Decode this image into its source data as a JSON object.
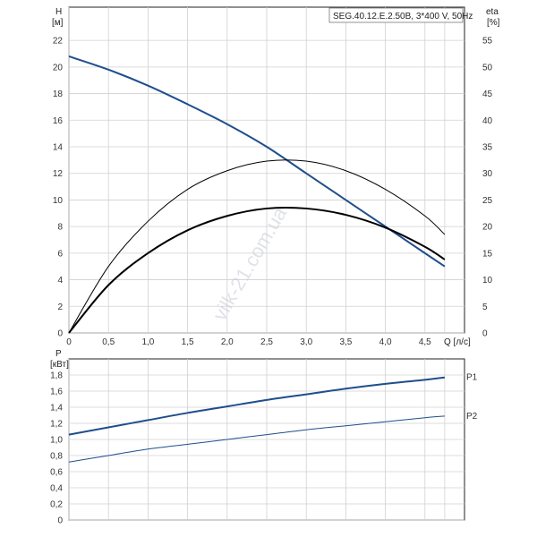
{
  "watermark": "vilk-21.com.ua",
  "chart_data": [
    {
      "type": "line",
      "title": "SEG.40.12.E.2.50B, 3*400 V, 50Hz",
      "xlabel": "Q [л/с]",
      "ylabel": "H",
      "ylabel_unit": "[м]",
      "y2label": "eta",
      "y2label_unit": "[%]",
      "xlim": [
        0,
        5
      ],
      "ylim": [
        0,
        24.5
      ],
      "y2lim": [
        0,
        61.25
      ],
      "grid": true,
      "xticks": [
        "0",
        "0,5",
        "1,0",
        "1,5",
        "2,0",
        "2,5",
        "3,0",
        "3,5",
        "4,0",
        "4,5"
      ],
      "xtick_values": [
        0,
        0.5,
        1.0,
        1.5,
        2.0,
        2.5,
        3.0,
        3.5,
        4.0,
        4.5
      ],
      "yticks": [
        "0",
        "2",
        "4",
        "6",
        "8",
        "10",
        "12",
        "14",
        "16",
        "18",
        "20",
        "22"
      ],
      "ytick_values": [
        0,
        2,
        4,
        6,
        8,
        10,
        12,
        14,
        16,
        18,
        20,
        22
      ],
      "y2ticks": [
        "0",
        "5",
        "10",
        "15",
        "20",
        "25",
        "30",
        "35",
        "40",
        "45",
        "50",
        "55"
      ],
      "y2tick_values": [
        0,
        5,
        10,
        15,
        20,
        25,
        30,
        35,
        40,
        45,
        50,
        55
      ],
      "series": [
        {
          "axis": "left",
          "color": "#1f4e8c",
          "width": 2,
          "x": [
            0,
            0.5,
            1.0,
            1.5,
            2.0,
            2.5,
            3.0,
            3.5,
            4.0,
            4.5,
            4.75
          ],
          "y": [
            20.8,
            19.8,
            18.6,
            17.2,
            15.7,
            14.0,
            12.0,
            10.0,
            8.0,
            6.0,
            5.0
          ]
        },
        {
          "axis": "right",
          "color": "#000000",
          "width": 1,
          "x": [
            0,
            0.5,
            1.0,
            1.5,
            2.0,
            2.5,
            3.0,
            3.5,
            4.0,
            4.5,
            4.75
          ],
          "y": [
            0,
            12.5,
            21.0,
            27.0,
            30.5,
            32.3,
            32.3,
            30.5,
            27.0,
            22.0,
            18.5
          ]
        },
        {
          "axis": "right",
          "color": "#000000",
          "width": 2,
          "x": [
            0,
            0.5,
            1.0,
            1.5,
            2.0,
            2.5,
            3.0,
            3.5,
            4.0,
            4.5,
            4.75
          ],
          "y": [
            0,
            9.0,
            15.0,
            19.3,
            22.0,
            23.4,
            23.4,
            22.2,
            19.8,
            16.2,
            13.8
          ]
        }
      ]
    },
    {
      "type": "line",
      "xlabel": "",
      "ylabel": "P",
      "ylabel_unit": "[кВт]",
      "xlim": [
        0,
        5
      ],
      "ylim": [
        0,
        2.0
      ],
      "grid": true,
      "yticks": [
        "0",
        "0,2",
        "0,4",
        "0,6",
        "0,8",
        "1,0",
        "1,2",
        "1,4",
        "1,6",
        "1,8"
      ],
      "ytick_values": [
        0,
        0.2,
        0.4,
        0.6,
        0.8,
        1.0,
        1.2,
        1.4,
        1.6,
        1.8
      ],
      "series": [
        {
          "name": "P1",
          "color": "#1f4e8c",
          "width": 2,
          "x": [
            0,
            0.5,
            1.0,
            1.5,
            2.0,
            2.5,
            3.0,
            3.5,
            4.0,
            4.5,
            4.75
          ],
          "y": [
            1.06,
            1.15,
            1.24,
            1.33,
            1.41,
            1.49,
            1.56,
            1.63,
            1.69,
            1.74,
            1.77
          ]
        },
        {
          "name": "P2",
          "color": "#1f4e8c",
          "width": 1,
          "x": [
            0,
            0.5,
            1.0,
            1.5,
            2.0,
            2.5,
            3.0,
            3.5,
            4.0,
            4.5,
            4.75
          ],
          "y": [
            0.72,
            0.8,
            0.88,
            0.94,
            1.0,
            1.06,
            1.12,
            1.17,
            1.22,
            1.27,
            1.29
          ]
        }
      ]
    }
  ]
}
